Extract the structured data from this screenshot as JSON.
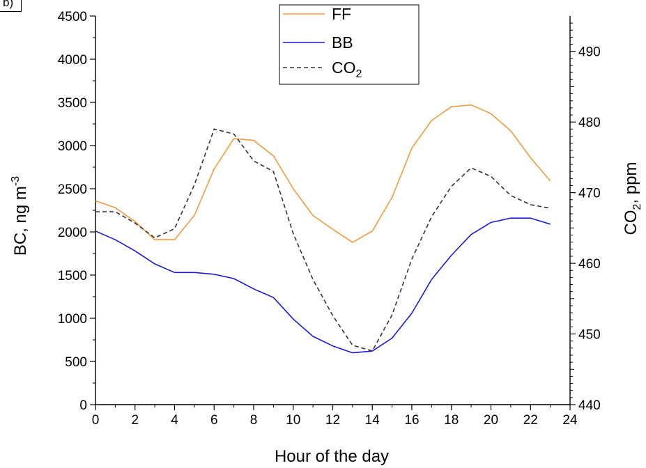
{
  "panel_label": "b)",
  "chart_data": {
    "type": "line",
    "title": "",
    "xlabel": "Hour of the day",
    "ylabel_left": {
      "main": "BC, ng m",
      "sup": "-3"
    },
    "ylabel_right": {
      "main": "CO",
      "sub": "2",
      "rest": ", ppm"
    },
    "xlim": [
      0,
      24
    ],
    "ylim_left": [
      0,
      4500
    ],
    "ylim_right": [
      440,
      495
    ],
    "x_ticks": [
      0,
      2,
      4,
      6,
      8,
      10,
      12,
      14,
      16,
      18,
      20,
      22,
      24
    ],
    "y_ticks_left": [
      0,
      500,
      1000,
      1500,
      2000,
      2500,
      3000,
      3500,
      4000,
      4500
    ],
    "y_ticks_right": [
      440,
      450,
      460,
      470,
      480,
      490
    ],
    "grid": false,
    "legend_position": "top-center",
    "x": [
      0,
      1,
      2,
      3,
      4,
      5,
      6,
      7,
      8,
      9,
      10,
      11,
      12,
      13,
      14,
      15,
      16,
      17,
      18,
      19,
      20,
      21,
      22,
      23
    ],
    "series": [
      {
        "name": "FF",
        "axis": "left",
        "color": "#f39b3c",
        "style": "solid",
        "values": [
          2360,
          2280,
          2120,
          1910,
          1910,
          2190,
          2730,
          3080,
          3060,
          2880,
          2500,
          2190,
          2030,
          1880,
          2010,
          2400,
          2970,
          3290,
          3450,
          3470,
          3370,
          3170,
          2860,
          2590
        ]
      },
      {
        "name": "BB",
        "axis": "left",
        "color": "#1a1ad6",
        "style": "solid",
        "values": [
          2010,
          1910,
          1780,
          1630,
          1530,
          1530,
          1510,
          1460,
          1340,
          1240,
          990,
          790,
          680,
          600,
          620,
          770,
          1060,
          1450,
          1730,
          1970,
          2110,
          2160,
          2160,
          2090
        ]
      },
      {
        "name": "CO",
        "name_sub": "2",
        "axis": "right",
        "color": "#333333",
        "style": "dashed",
        "values": [
          467.3,
          467.3,
          465.7,
          463.6,
          464.9,
          471.1,
          479.0,
          478.3,
          474.5,
          473.0,
          464.2,
          457.7,
          452.6,
          448.4,
          447.6,
          452.7,
          460.6,
          466.6,
          470.9,
          473.5,
          472.3,
          469.6,
          468.3,
          467.8
        ]
      }
    ]
  }
}
